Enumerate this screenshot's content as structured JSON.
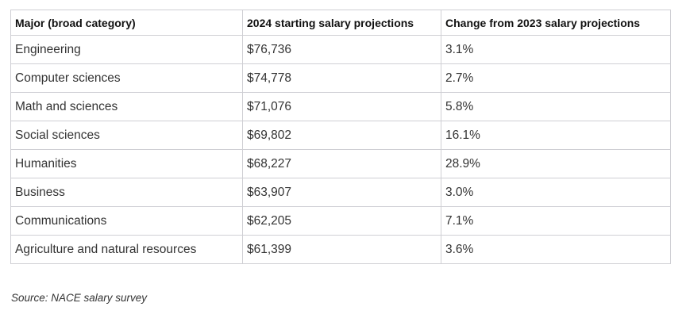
{
  "table": {
    "header": [
      "Major (broad category)",
      "2024 starting salary projections",
      "Change from 2023 salary projections"
    ],
    "rows": [
      [
        "Engineering",
        "$76,736",
        "3.1%"
      ],
      [
        "Computer sciences",
        "$74,778",
        "2.7%"
      ],
      [
        "Math and sciences",
        "$71,076",
        "5.8%"
      ],
      [
        "Social sciences",
        "$69,802",
        "16.1%"
      ],
      [
        "Humanities",
        "$68,227",
        "28.9%"
      ],
      [
        "Business",
        "$63,907",
        "3.0%"
      ],
      [
        "Communications",
        "$62,205",
        "7.1%"
      ],
      [
        "Agriculture and natural resources",
        "$61,399",
        "3.6%"
      ]
    ]
  },
  "source": "Source: NACE salary survey"
}
